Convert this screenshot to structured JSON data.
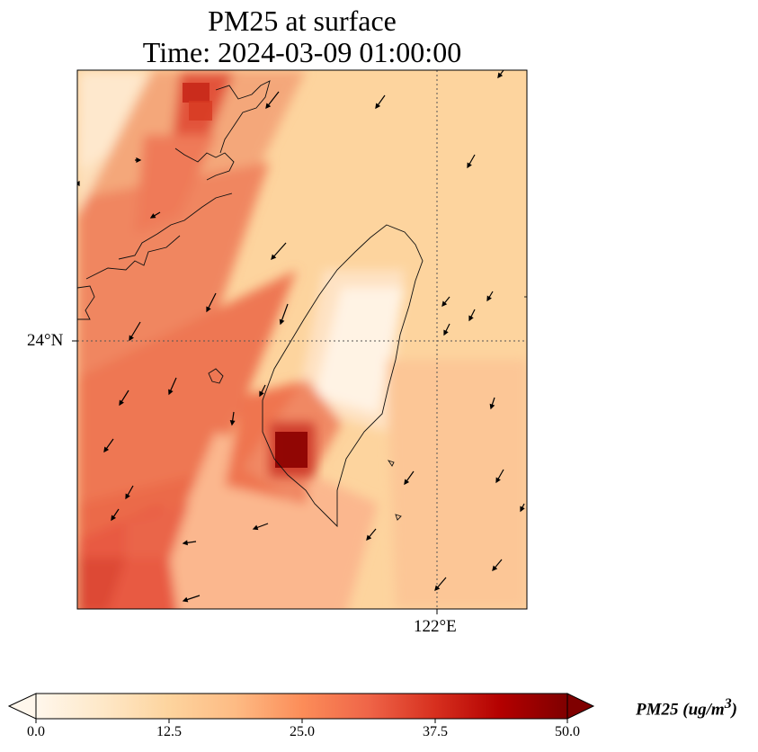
{
  "title": {
    "line1": "PM25 at surface",
    "line2": "Time: 2024-03-09 01:00:00"
  },
  "map": {
    "latitude_label": "24°N",
    "longitude_label": "122°E",
    "variable": "PM25",
    "region": "Taiwan and Taiwan Strait",
    "wind_direction": "northeasterly"
  },
  "colorbar": {
    "colormap": "OrRd",
    "min": 0.0,
    "max": 50.0,
    "extend": "both",
    "tick_labels": [
      "0.0",
      "12.5",
      "25.0",
      "37.5",
      "50.0"
    ],
    "unit_label_prefix": "PM25 (ug/m",
    "unit_label_sup": "3",
    "unit_label_suffix": ")",
    "colors": [
      "#fff7ec",
      "#fee8c8",
      "#fdd49e",
      "#fdbb84",
      "#fc8d59",
      "#ef6548",
      "#d7301f",
      "#b30000",
      "#7f0000"
    ]
  }
}
